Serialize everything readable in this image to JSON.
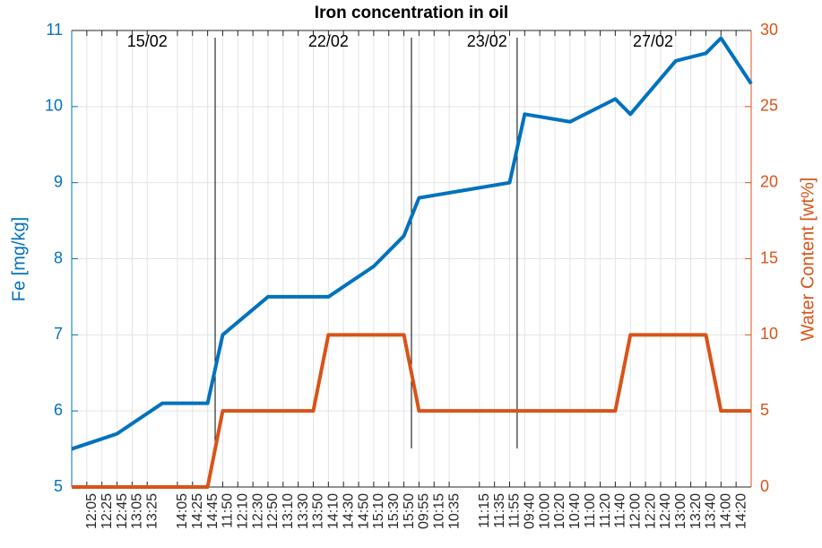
{
  "chart_data": {
    "type": "line",
    "title": "Iron concentration in oil",
    "y_label": "Fe [mg/kg]",
    "y2_label": "Water Content [wt%]",
    "xlim": [
      0,
      45
    ],
    "ylim": [
      5,
      11
    ],
    "yticks": [
      5,
      6,
      7,
      8,
      9,
      10,
      11
    ],
    "y2lim": [
      0,
      30
    ],
    "y2ticks": [
      0,
      5,
      10,
      15,
      20,
      25,
      30
    ],
    "grid": true,
    "xticks": [
      {
        "value": 1,
        "label": "12:05"
      },
      {
        "value": 2,
        "label": "12:25"
      },
      {
        "value": 3,
        "label": "12:45"
      },
      {
        "value": 4,
        "label": "13:05"
      },
      {
        "value": 5,
        "label": "13:25"
      },
      {
        "value": 7,
        "label": "14:05"
      },
      {
        "value": 8,
        "label": "14:25"
      },
      {
        "value": 9,
        "label": "14:45"
      },
      {
        "value": 10,
        "label": "11:50"
      },
      {
        "value": 11,
        "label": "12:10"
      },
      {
        "value": 12,
        "label": "12:30"
      },
      {
        "value": 13,
        "label": "12:50"
      },
      {
        "value": 14,
        "label": "13:10"
      },
      {
        "value": 15,
        "label": "13:30"
      },
      {
        "value": 16,
        "label": "13:50"
      },
      {
        "value": 17,
        "label": "14:10"
      },
      {
        "value": 18,
        "label": "14:30"
      },
      {
        "value": 19,
        "label": "14:50"
      },
      {
        "value": 20,
        "label": "15:10"
      },
      {
        "value": 21,
        "label": "15:30"
      },
      {
        "value": 22,
        "label": "15:50"
      },
      {
        "value": 23,
        "label": "09:55"
      },
      {
        "value": 24,
        "label": "10:15"
      },
      {
        "value": 25,
        "label": "10:35"
      },
      {
        "value": 27,
        "label": "11:15"
      },
      {
        "value": 28,
        "label": "11:35"
      },
      {
        "value": 29,
        "label": "11:55"
      },
      {
        "value": 30,
        "label": "09:40"
      },
      {
        "value": 31,
        "label": "10:00"
      },
      {
        "value": 32,
        "label": "10:20"
      },
      {
        "value": 33,
        "label": "10:40"
      },
      {
        "value": 34,
        "label": "11:00"
      },
      {
        "value": 35,
        "label": "11:20"
      },
      {
        "value": 36,
        "label": "11:40"
      },
      {
        "value": 37,
        "label": "12:00"
      },
      {
        "value": 38,
        "label": "12:20"
      },
      {
        "value": 39,
        "label": "12:40"
      },
      {
        "value": 40,
        "label": "13:00"
      },
      {
        "value": 41,
        "label": "13:20"
      },
      {
        "value": 42,
        "label": "13:40"
      },
      {
        "value": 43,
        "label": "14:00"
      },
      {
        "value": 44,
        "label": "14:20"
      }
    ],
    "separators": [
      9.5,
      22.5,
      29.5
    ],
    "annotations": [
      {
        "text": "15/02",
        "x": 5
      },
      {
        "text": "22/02",
        "x": 17
      },
      {
        "text": "23/02",
        "x": 27.5
      },
      {
        "text": "27/02",
        "x": 38.5
      }
    ],
    "series": [
      {
        "name": "Fe",
        "color": "#0072BD",
        "axis": "y",
        "x": [
          0,
          3,
          6,
          9,
          10,
          13,
          17,
          20,
          22,
          23,
          29,
          30,
          33,
          36,
          37,
          40,
          42,
          43,
          45
        ],
        "values": [
          5.5,
          5.7,
          6.1,
          6.1,
          7.0,
          7.5,
          7.5,
          7.9,
          8.3,
          8.8,
          9.0,
          9.9,
          9.8,
          10.1,
          9.9,
          10.6,
          10.7,
          10.9,
          10.3
        ]
      },
      {
        "name": "Water Content",
        "color": "#D95319",
        "axis": "y2",
        "x": [
          0,
          9,
          10,
          16,
          17,
          22,
          23,
          36,
          37,
          42,
          43,
          45
        ],
        "values": [
          0,
          0,
          5,
          5,
          10,
          10,
          5,
          5,
          10,
          10,
          5,
          5
        ]
      }
    ]
  }
}
